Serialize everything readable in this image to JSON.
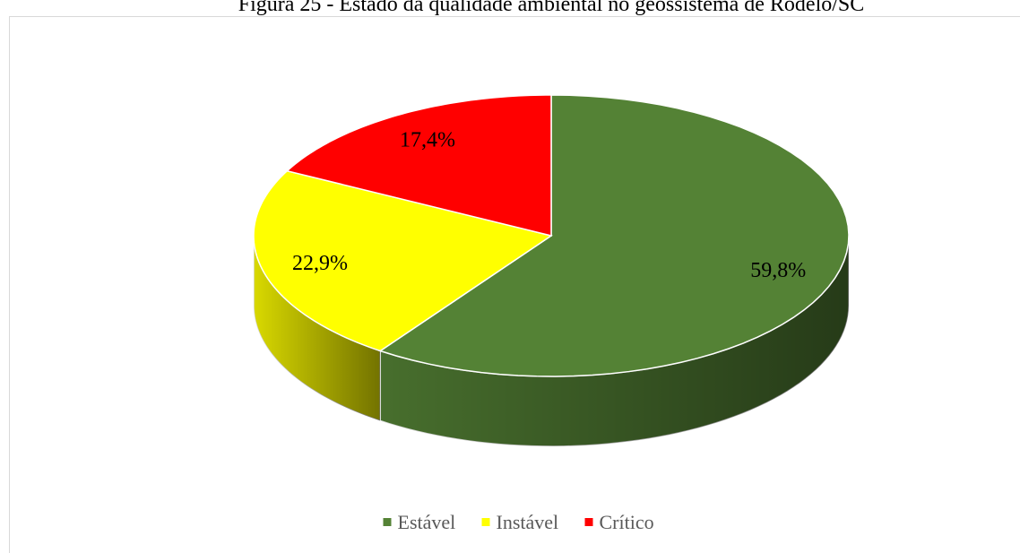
{
  "chart_data": {
    "type": "pie3d",
    "title": "Figura 25 - Estado da qualidade ambiental no geossistema de Rodelo/SC",
    "categories": [
      "Estável",
      "Instável",
      "Crítico"
    ],
    "values": [
      59.8,
      22.9,
      17.4
    ],
    "value_labels": [
      "59,8%",
      "22,9%",
      "17,4%"
    ],
    "colors": [
      "#548235",
      "#ffff00",
      "#ff0000"
    ],
    "legend": "bottom"
  }
}
